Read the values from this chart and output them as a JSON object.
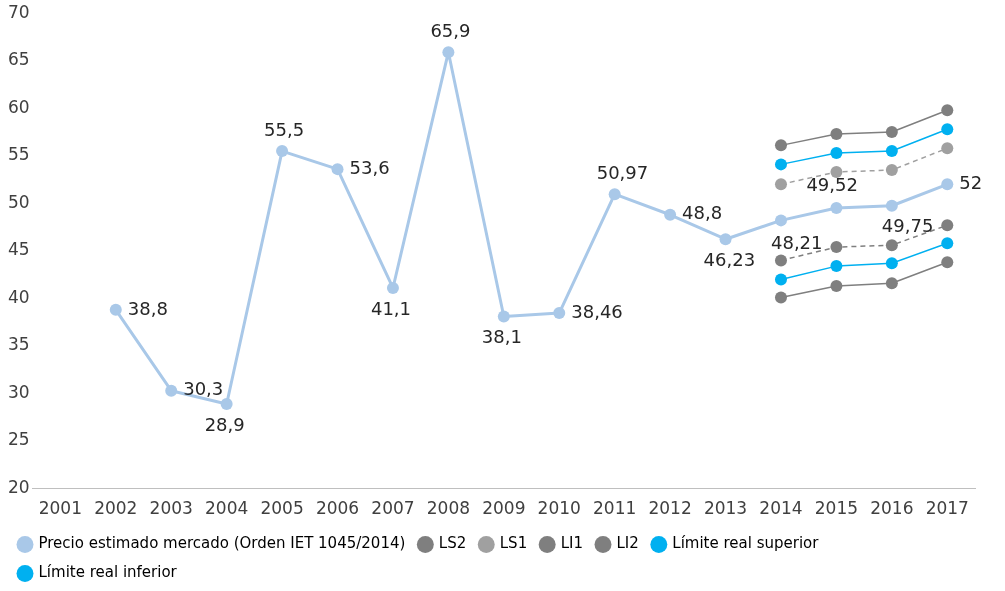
{
  "chart_data": {
    "type": "line",
    "categories": [
      "2001",
      "2002",
      "2003",
      "2004",
      "2005",
      "2006",
      "2007",
      "2008",
      "2009",
      "2010",
      "2011",
      "2012",
      "2013",
      "2014",
      "2015",
      "2016",
      "2017"
    ],
    "ylim": [
      20,
      70
    ],
    "yticks": [
      20,
      25,
      30,
      35,
      40,
      45,
      50,
      55,
      60,
      65,
      70
    ],
    "grid": false,
    "legend": "bottom",
    "marker": "circle",
    "series": [
      {
        "name": "Precio estimado mercado (Orden IET 1045/2014)",
        "color": "#a9c8e8",
        "values": [
          null,
          38.8,
          30.3,
          28.9,
          55.5,
          53.6,
          41.1,
          65.9,
          38.1,
          38.46,
          50.97,
          48.8,
          46.23,
          48.21,
          49.52,
          49.75,
          52
        ],
        "value_labels": [
          null,
          "38,8",
          "30,3",
          "28,9",
          "55,5",
          "53,6",
          "41,1",
          "65,9",
          "38,1",
          "38,46",
          "50,97",
          "48,8",
          "46,23",
          "48,21",
          "49,52",
          "49,75",
          "52"
        ]
      },
      {
        "name": "LS2",
        "color": "#7f7f7f",
        "values": [
          null,
          null,
          null,
          null,
          null,
          null,
          null,
          null,
          null,
          null,
          null,
          null,
          null,
          56.1,
          57.3,
          57.5,
          59.8
        ]
      },
      {
        "name": "LS1",
        "color": "#a0a0a0",
        "line_style": "dashed",
        "values": [
          null,
          null,
          null,
          null,
          null,
          null,
          null,
          null,
          null,
          null,
          null,
          null,
          null,
          52.0,
          53.3,
          53.5,
          55.8
        ]
      },
      {
        "name": "LI1",
        "color": "#7f7f7f",
        "line_style": "dashed",
        "values": [
          null,
          null,
          null,
          null,
          null,
          null,
          null,
          null,
          null,
          null,
          null,
          null,
          null,
          44.0,
          45.4,
          45.6,
          47.7
        ]
      },
      {
        "name": "LI2",
        "color": "#7f7f7f",
        "values": [
          null,
          null,
          null,
          null,
          null,
          null,
          null,
          null,
          null,
          null,
          null,
          null,
          null,
          40.1,
          41.3,
          41.6,
          43.8
        ]
      },
      {
        "name": "Límite real superior",
        "color": "#00b0f0",
        "values": [
          null,
          null,
          null,
          null,
          null,
          null,
          null,
          null,
          null,
          null,
          null,
          null,
          null,
          54.1,
          55.3,
          55.5,
          57.8
        ]
      },
      {
        "name": "Límite real inferior",
        "color": "#00b0f0",
        "values": [
          null,
          null,
          null,
          null,
          null,
          null,
          null,
          null,
          null,
          null,
          null,
          null,
          null,
          42.0,
          43.4,
          43.7,
          45.8
        ]
      }
    ]
  }
}
